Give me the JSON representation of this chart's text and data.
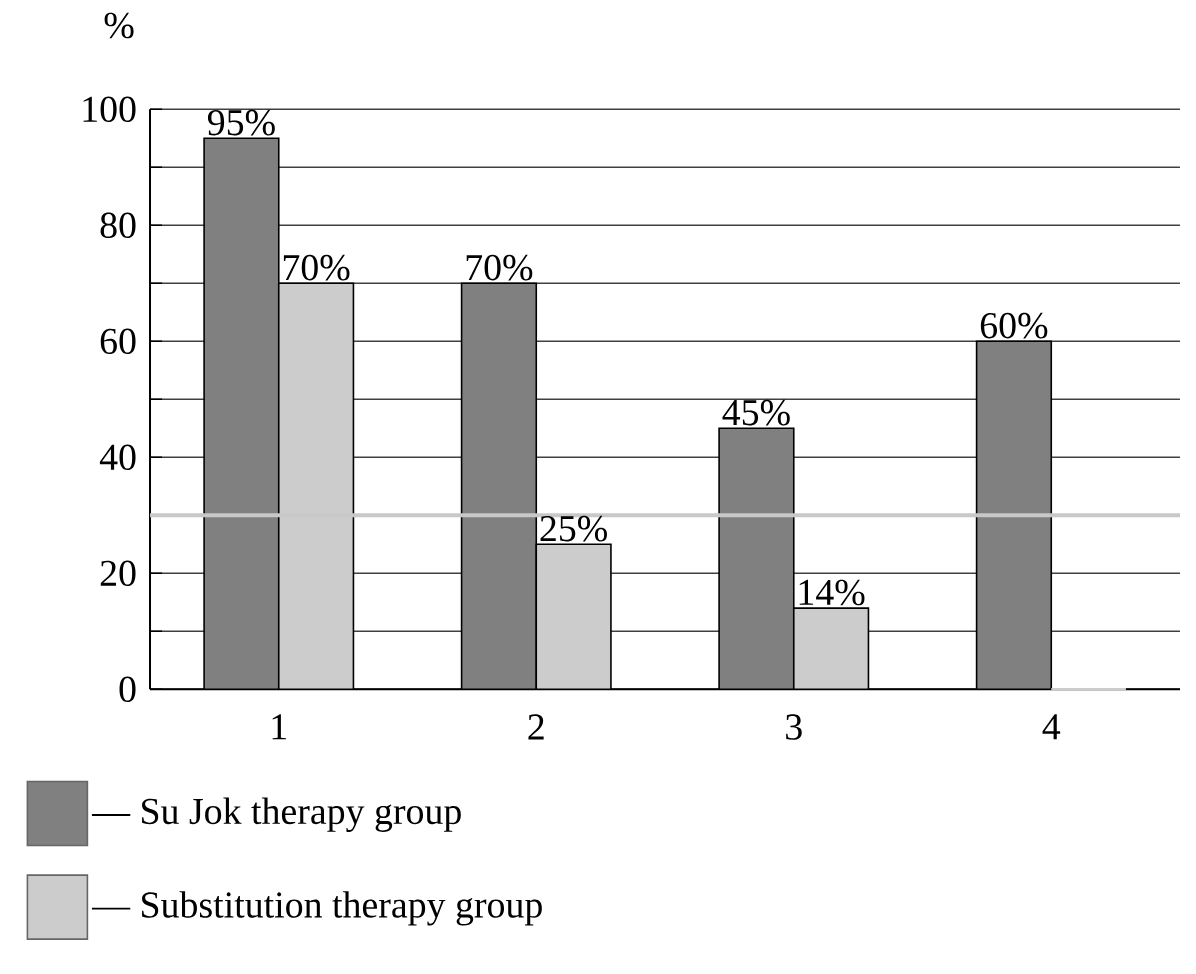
{
  "chart_data": {
    "type": "bar",
    "ylabel": "%",
    "categories": [
      "1",
      "2",
      "3",
      "4"
    ],
    "series": [
      {
        "name": "— Su Jok therapy group",
        "color": "#808080",
        "values": [
          95,
          70,
          45,
          60
        ],
        "value_labels": [
          "95%",
          "70%",
          "45%",
          "60%"
        ]
      },
      {
        "name": "— Substitution therapy group",
        "color": "#cccccc",
        "values": [
          70,
          25,
          14,
          0
        ],
        "value_labels": [
          "70%",
          "25%",
          "14%",
          null
        ]
      }
    ],
    "ylim": [
      0,
      100
    ],
    "yticks": [
      0,
      {
        "value": 10,
        "label": null
      },
      20,
      {
        "value": 30,
        "label": null
      },
      40,
      {
        "value": 50,
        "label": null
      },
      60,
      {
        "value": 70,
        "label": null
      },
      80,
      {
        "value": 90,
        "label": null
      },
      100
    ],
    "ref_lines": [
      {
        "axis": "y",
        "value": 30,
        "color": "#c8c8c8"
      }
    ],
    "grid": "y",
    "legend": "bottom"
  }
}
